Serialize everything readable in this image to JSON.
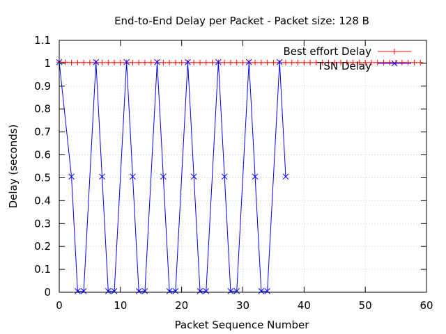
{
  "chart_data": {
    "type": "line",
    "title": "End-to-End Delay per Packet - Packet size: 128 B",
    "xlabel": "Packet Sequence Number",
    "ylabel": "Delay (seconds)",
    "xlim": [
      0,
      60
    ],
    "ylim": [
      0,
      1.1
    ],
    "xticks": [
      0,
      10,
      20,
      30,
      40,
      50,
      60
    ],
    "yticks": [
      0,
      0.1,
      0.2,
      0.3,
      0.4,
      0.5,
      0.6,
      0.7,
      0.8,
      0.9,
      1,
      1.1
    ],
    "grid": true,
    "legend_position": "top-right",
    "series": [
      {
        "name": "Best effort Delay",
        "color": "#ff0000",
        "marker": "plus",
        "x": [
          0,
          1,
          2,
          3,
          4,
          5,
          6,
          7,
          8,
          9,
          10,
          11,
          12,
          13,
          14,
          15,
          16,
          17,
          18,
          19,
          20,
          21,
          22,
          23,
          24,
          25,
          26,
          27,
          28,
          29,
          30,
          31,
          32,
          33,
          34,
          35,
          36,
          37,
          38,
          39,
          40,
          41,
          42,
          43,
          44,
          45,
          46,
          47,
          48,
          49,
          50,
          51,
          52,
          53,
          54,
          55,
          56,
          57,
          58,
          59
        ],
        "y": [
          1.005,
          1.004,
          1.003,
          1.003,
          1.003,
          1.003,
          1.003,
          1.003,
          1.003,
          1.003,
          1.003,
          1.003,
          1.003,
          1.003,
          1.003,
          1.003,
          1.003,
          1.003,
          1.003,
          1.003,
          1.003,
          1.003,
          1.003,
          1.003,
          1.003,
          1.003,
          1.003,
          1.003,
          1.003,
          1.003,
          1.003,
          1.003,
          1.003,
          1.003,
          1.003,
          1.003,
          1.003,
          1.003,
          1.003,
          1.003,
          1.003,
          1.003,
          1.003,
          1.003,
          1.003,
          1.003,
          1.003,
          1.003,
          1.003,
          1.003,
          1.003,
          1.003,
          1.003,
          1.003,
          1.003,
          1.003,
          1.003,
          1.003,
          1.003,
          1.003
        ]
      },
      {
        "name": "TSN Delay",
        "color": "#0000ff",
        "marker": "cross",
        "x": [
          0,
          2,
          3,
          4,
          6,
          7,
          8,
          9,
          11,
          12,
          13,
          14,
          16,
          17,
          18,
          19,
          21,
          22,
          23,
          24,
          26,
          27,
          28,
          29,
          31,
          32,
          33,
          34,
          36,
          37
        ],
        "y": [
          1.005,
          0.505,
          0.005,
          0.005,
          1.005,
          0.505,
          0.005,
          0.005,
          1.005,
          0.505,
          0.005,
          0.005,
          1.005,
          0.505,
          0.005,
          0.005,
          1.005,
          0.505,
          0.005,
          0.005,
          1.005,
          0.505,
          0.005,
          0.005,
          1.005,
          0.505,
          0.005,
          0.005,
          1.005,
          0.505
        ]
      }
    ]
  }
}
